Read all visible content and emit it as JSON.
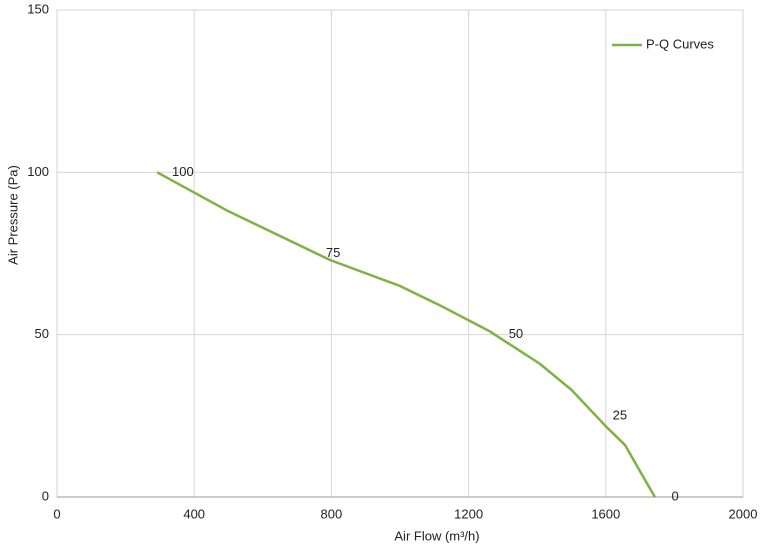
{
  "chart_data": {
    "type": "line",
    "x_label": "Air Flow  (m³/h)",
    "y_label": "Air Pressure  (Pa)",
    "series": [
      {
        "name": "P-Q Curves",
        "color": "#7cb342",
        "x": [
          292,
          500,
          796,
          1000,
          1117,
          1262,
          1408,
          1500,
          1598,
          1656,
          1743
        ],
        "values": [
          100,
          88,
          73,
          65,
          59,
          51,
          41,
          33,
          22,
          16,
          0
        ]
      }
    ],
    "annotations": [
      {
        "text": "100",
        "x": 367,
        "y": 100
      },
      {
        "text": "75",
        "x": 805,
        "y": 75
      },
      {
        "text": "50",
        "x": 1338,
        "y": 50
      },
      {
        "text": "25",
        "x": 1641,
        "y": 25
      },
      {
        "text": "0",
        "x": 1802,
        "y": 0
      }
    ],
    "xlim": [
      0,
      2000
    ],
    "xticks": [
      0,
      400,
      800,
      1200,
      1600,
      2000
    ],
    "ylim": [
      0,
      150
    ],
    "yticks": [
      0,
      50,
      100,
      150
    ],
    "grid": true,
    "legend": "upper right"
  }
}
